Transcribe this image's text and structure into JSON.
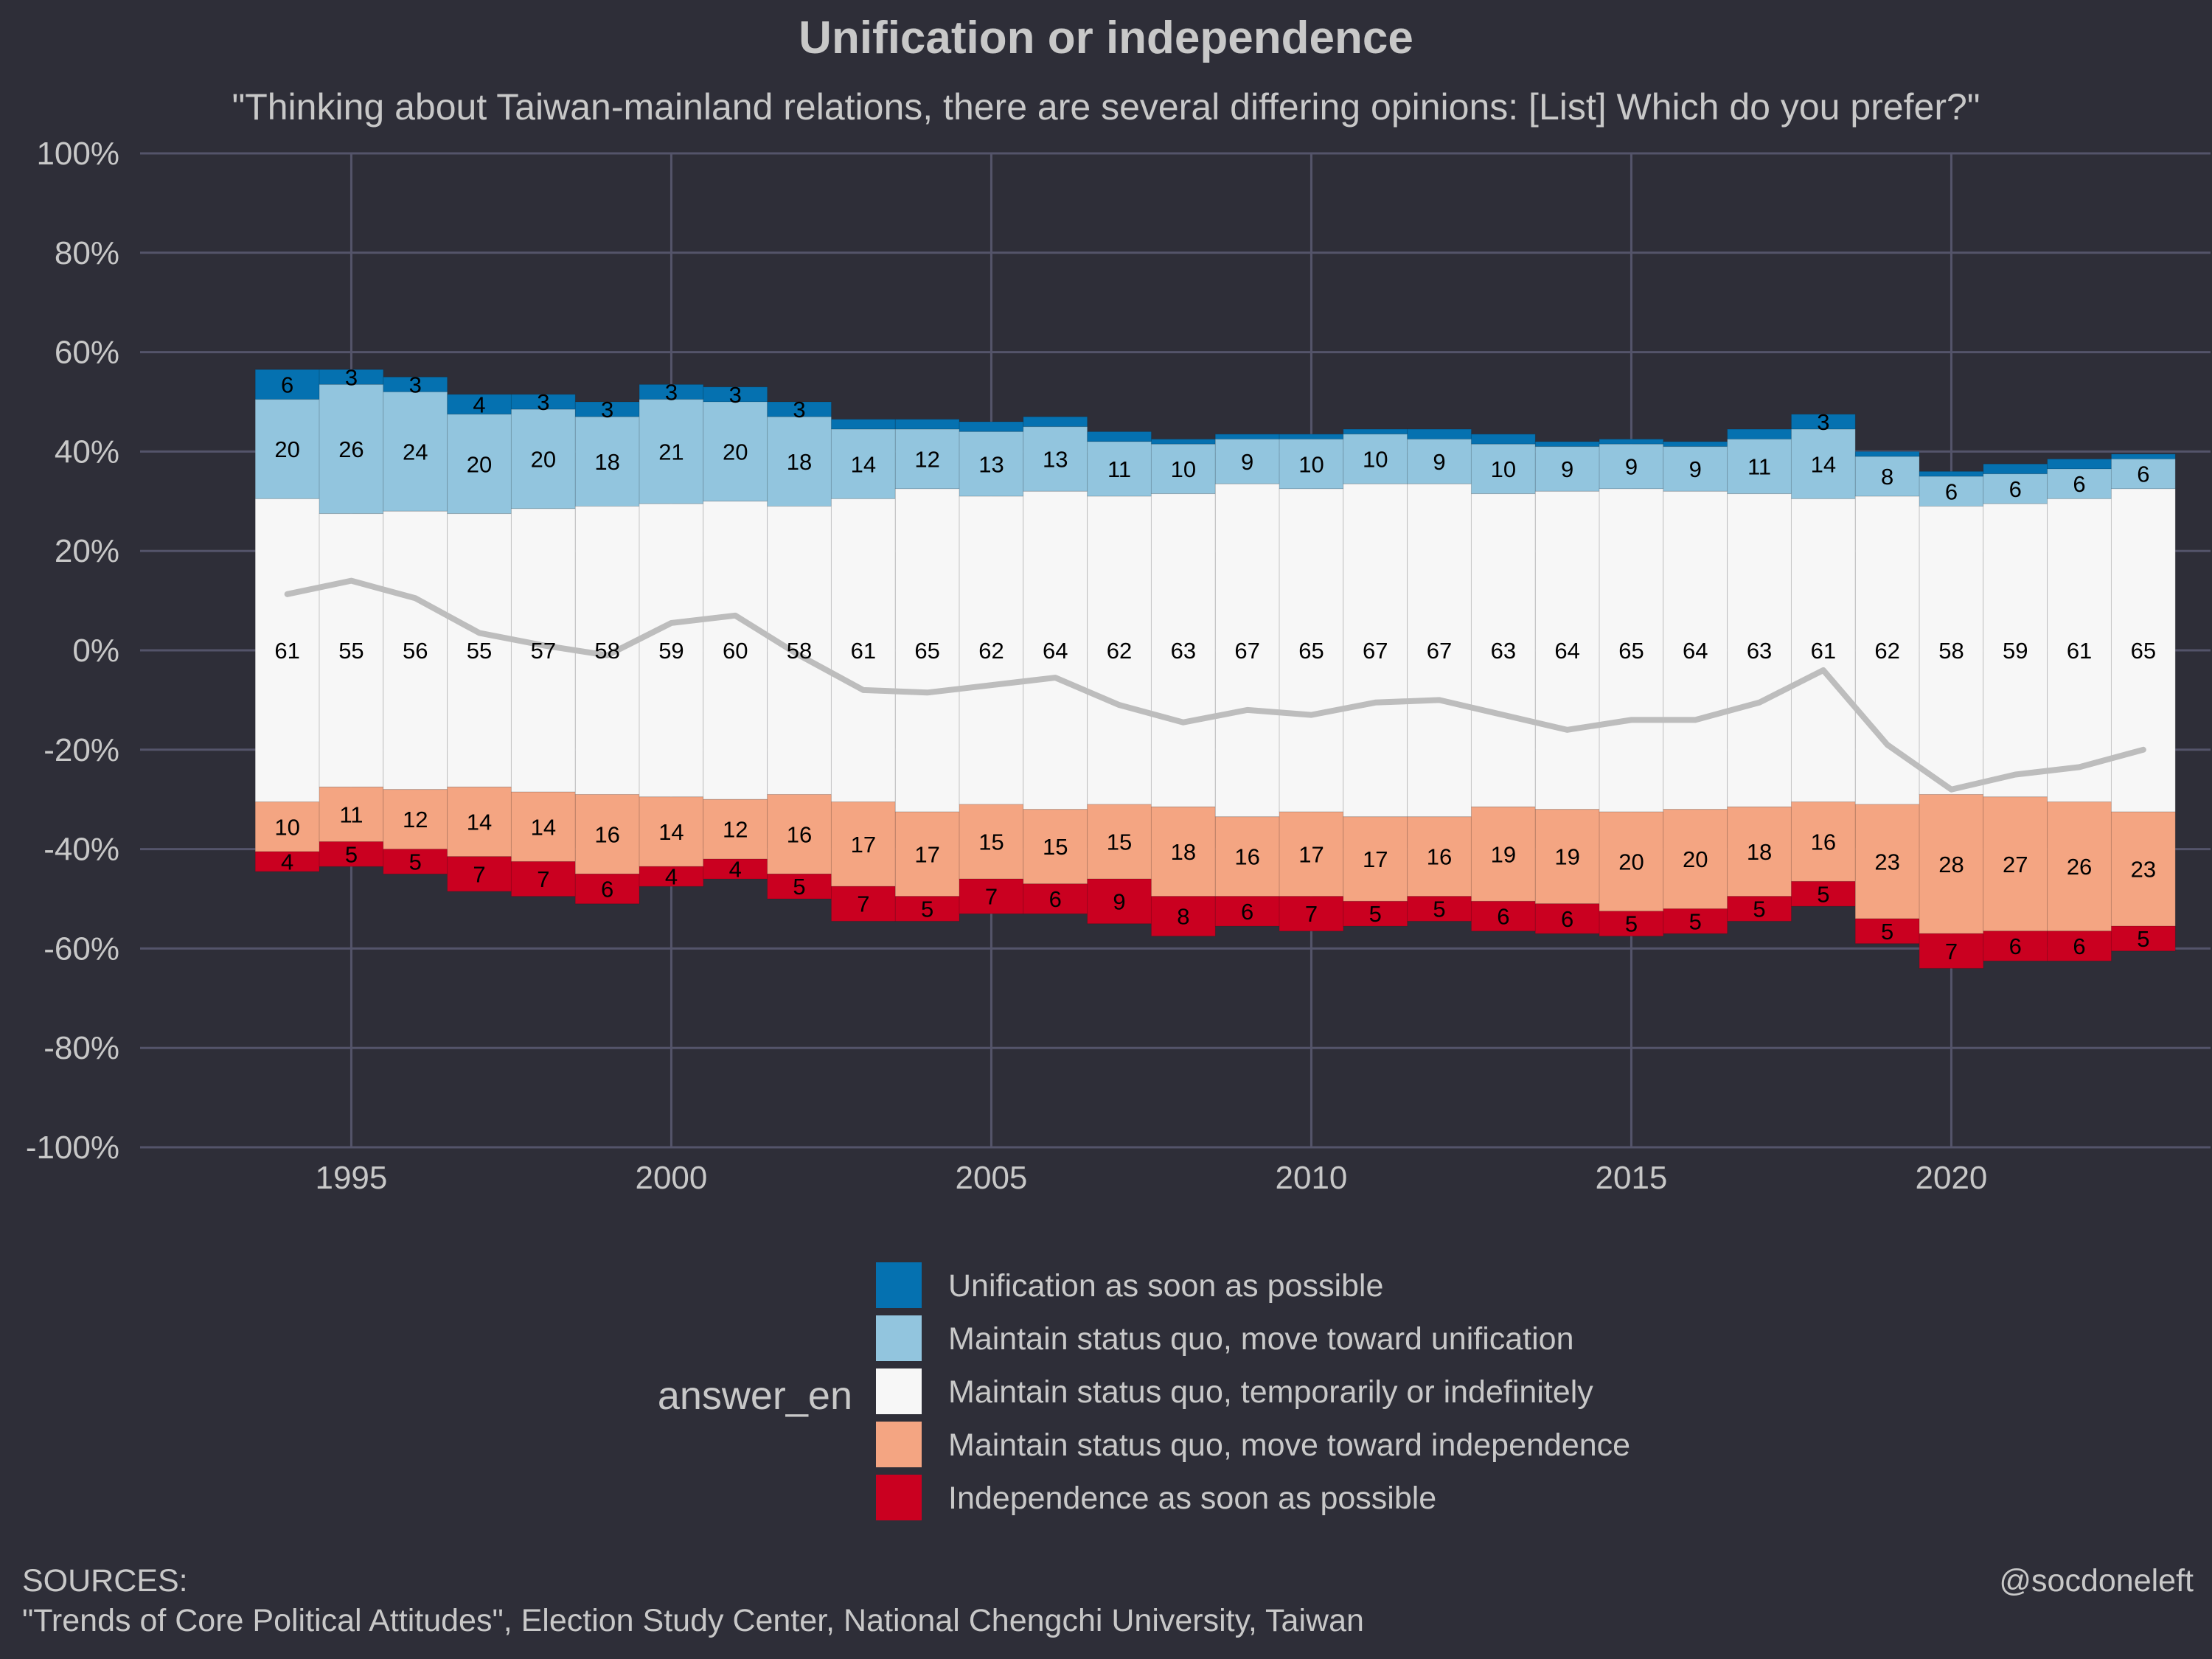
{
  "chart_data": {
    "type": "bar",
    "title": "Unification or independence",
    "subtitle": "\"Thinking about Taiwan-mainland relations, there are several differing opinions: [List] Which do you prefer?\"",
    "x": [
      1994,
      1995,
      1996,
      1997,
      1998,
      1999,
      2000,
      2001,
      2002,
      2003,
      2004,
      2005,
      2006,
      2007,
      2008,
      2009,
      2010,
      2011,
      2012,
      2013,
      2014,
      2015,
      2016,
      2017,
      2018,
      2019,
      2020,
      2021,
      2022,
      2023
    ],
    "x_ticks": [
      "1995",
      "2000",
      "2005",
      "2010",
      "2015",
      "2020"
    ],
    "y_ticks": [
      "100%",
      "80%",
      "60%",
      "40%",
      "20%",
      "0%",
      "-20%",
      "-40%",
      "-60%",
      "-80%",
      "-100%"
    ],
    "ylim": [
      -100,
      100
    ],
    "grid": true,
    "legend_title": "answer_en",
    "legend_position": "bottom",
    "series": [
      {
        "name": "Unification as soon as possible",
        "color": "#0571b0",
        "values": [
          6,
          3,
          3,
          4,
          3,
          3,
          3,
          3,
          3,
          2,
          2,
          2,
          2,
          2,
          1,
          1,
          1,
          1,
          2,
          2,
          1,
          1,
          1,
          2,
          3,
          1,
          1,
          2,
          2,
          1
        ]
      },
      {
        "name": "Maintain status quo, move toward unification",
        "color": "#92c5de",
        "values": [
          20,
          26,
          24,
          20,
          20,
          18,
          21,
          20,
          18,
          14,
          12,
          13,
          13,
          11,
          10,
          9,
          10,
          10,
          9,
          10,
          9,
          9,
          9,
          11,
          14,
          8,
          6,
          6,
          6,
          6
        ]
      },
      {
        "name": "Maintain status quo, temporarily or indefinitely",
        "color": "#f7f7f7",
        "values": [
          61,
          55,
          56,
          55,
          57,
          58,
          59,
          60,
          58,
          61,
          65,
          62,
          64,
          62,
          63,
          67,
          65,
          67,
          67,
          63,
          64,
          65,
          64,
          63,
          61,
          62,
          58,
          59,
          61,
          65
        ]
      },
      {
        "name": "Maintain status quo, move toward independence",
        "color": "#f4a582",
        "values": [
          10,
          11,
          12,
          14,
          14,
          16,
          14,
          12,
          16,
          17,
          17,
          15,
          15,
          15,
          18,
          16,
          17,
          17,
          16,
          19,
          19,
          20,
          20,
          18,
          16,
          23,
          28,
          27,
          26,
          23
        ]
      },
      {
        "name": "Independence as soon as possible",
        "color": "#ca0020",
        "values": [
          4,
          5,
          5,
          7,
          7,
          6,
          4,
          4,
          5,
          7,
          5,
          7,
          6,
          9,
          8,
          6,
          7,
          5,
          5,
          6,
          6,
          5,
          5,
          5,
          5,
          5,
          7,
          6,
          6,
          5
        ]
      }
    ],
    "net_line": {
      "color": "#bdbdbd",
      "values": [
        11.3,
        14,
        10.5,
        3.5,
        1,
        -1,
        5.5,
        7,
        -1,
        -8,
        -8.5,
        -7,
        -5.5,
        -11,
        -14.5,
        -12,
        -13,
        -10.5,
        -10,
        -13,
        -16,
        -14,
        -14,
        -10.5,
        -4,
        -19,
        -28,
        -25,
        -23.5,
        -20
      ]
    },
    "sources_label": "SOURCES:",
    "sources_text": "\"Trends of Core Political Attitudes\", Election Study Center, National Chengchi University, Taiwan",
    "credit": "@socdoneleft"
  }
}
